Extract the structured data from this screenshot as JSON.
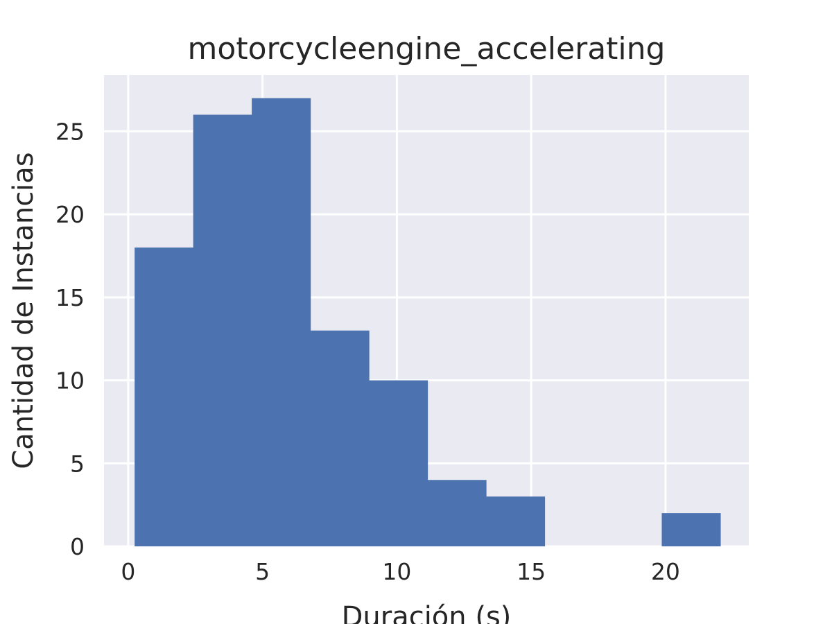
{
  "chart_data": {
    "type": "bar",
    "title": "motorcycleengine_accelerating",
    "xlabel": "Duración (s)",
    "ylabel": "Cantidad de Instancias",
    "bin_edges": [
      0.24,
      2.42,
      4.6,
      6.78,
      8.96,
      11.14,
      13.32,
      15.5,
      17.68,
      19.86,
      22.04
    ],
    "values": [
      18,
      26,
      27,
      13,
      10,
      4,
      3,
      0,
      0,
      2
    ],
    "xlim": [
      -0.9,
      23.1
    ],
    "ylim": [
      0,
      28.4
    ],
    "xticks": [
      0,
      5,
      10,
      15,
      20
    ],
    "xtick_labels": [
      "0",
      "5",
      "10",
      "15",
      "20"
    ],
    "yticks": [
      0,
      5,
      10,
      15,
      20,
      25
    ],
    "ytick_labels": [
      "0",
      "5",
      "10",
      "15",
      "20",
      "25"
    ],
    "grid": true,
    "colors": {
      "bar": "#4c72b0",
      "plot_background": "#eaeaf2",
      "grid": "#ffffff",
      "text": "#262626"
    }
  }
}
